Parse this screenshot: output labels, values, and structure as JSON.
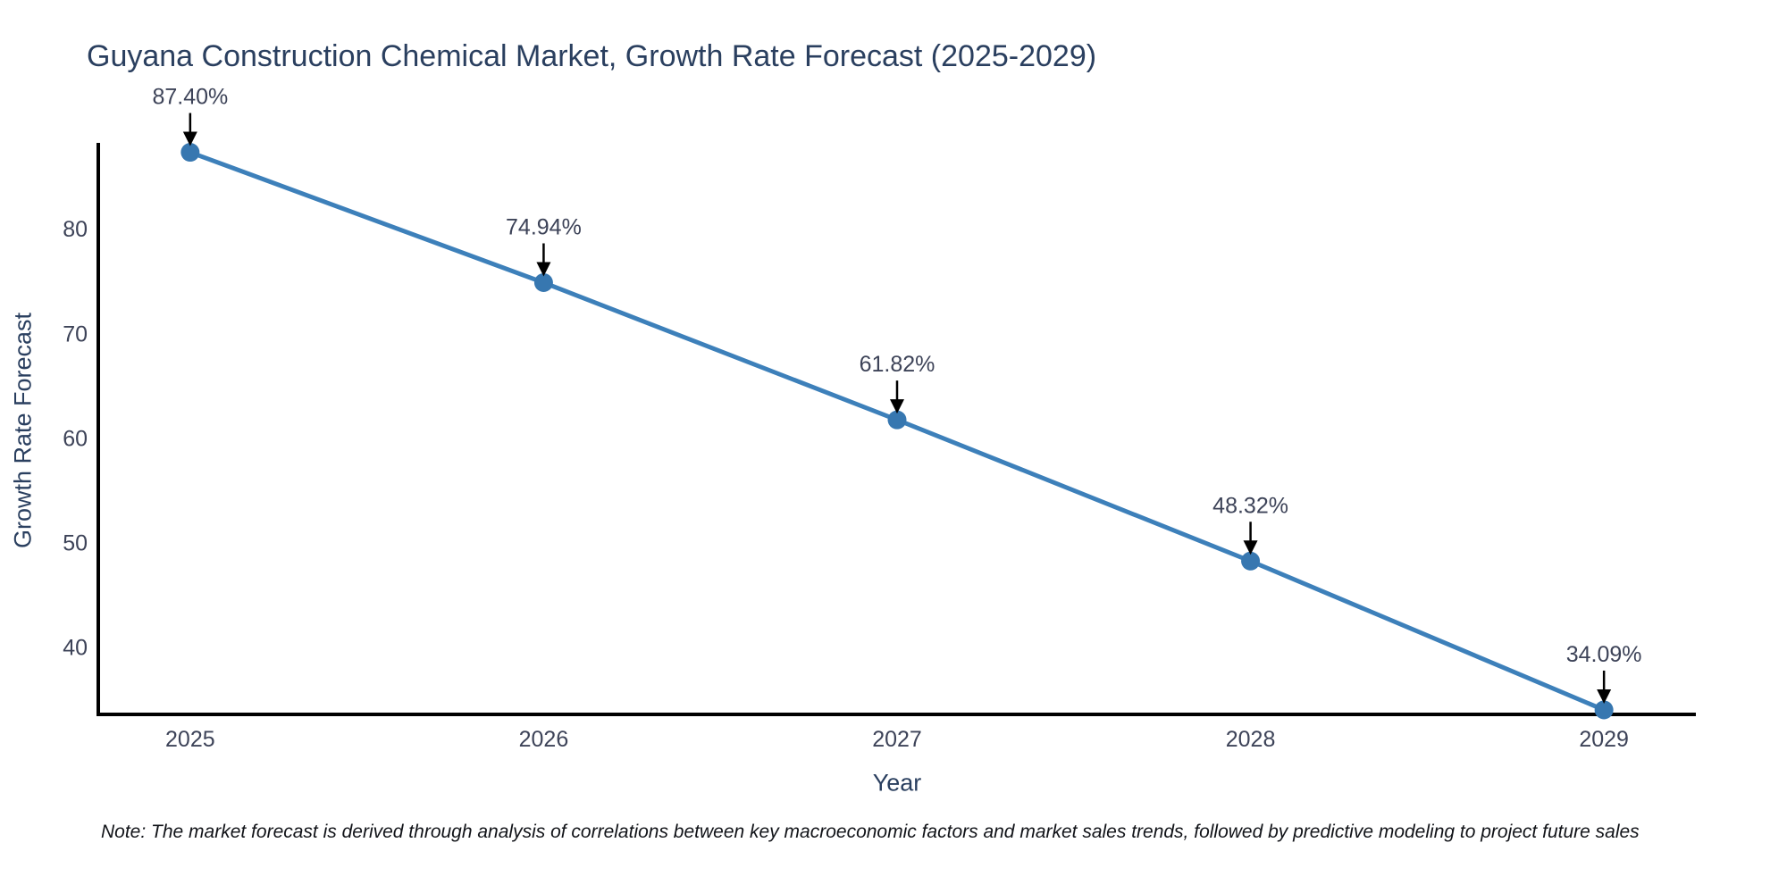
{
  "chart_data": {
    "type": "line",
    "title": "Guyana Construction Chemical Market, Growth Rate Forecast (2025-2029)",
    "xlabel": "Year",
    "ylabel": "Growth Rate Forecast",
    "x": [
      2025,
      2026,
      2027,
      2028,
      2029
    ],
    "x_tick_labels": [
      "2025",
      "2026",
      "2027",
      "2028",
      "2029"
    ],
    "series": [
      {
        "name": "Growth Rate Forecast",
        "values": [
          87.4,
          74.94,
          61.82,
          48.32,
          34.09
        ],
        "point_labels": [
          "87.40%",
          "74.94%",
          "61.82%",
          "48.32%",
          "34.09%"
        ]
      }
    ],
    "y_ticks": [
      40,
      50,
      60,
      70,
      80
    ],
    "ylim": [
      33.66,
      88.3
    ],
    "xlim": [
      2024.74,
      2029.26
    ],
    "grid": false,
    "legend": "none",
    "line_color": "#3d80ba",
    "marker_color": "#3777b0",
    "axis_color": "#000000",
    "title_color": "#2a3f5f",
    "tick_color": "#3d4358",
    "annotation_color": "#3d4358",
    "annotation_arrow_color": "#000000"
  },
  "note": "Note: The market forecast is derived through analysis of correlations between key macroeconomic factors and market sales trends, followed by predictive modeling to project future sales"
}
